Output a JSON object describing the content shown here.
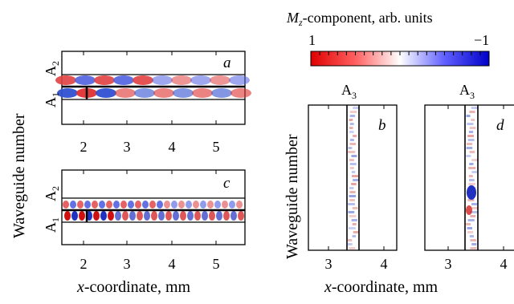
{
  "colorbar": {
    "title_main": "M",
    "title_sub": "z",
    "title_rest": "-component, arb. units",
    "max_label": "1",
    "min_label": "−1",
    "stops": [
      "#e00000",
      "#ff6060",
      "#ffffff",
      "#6060ff",
      "#0000c8"
    ]
  },
  "left_column": {
    "ylabel": "Waveguide number",
    "xlabel_italic": "x",
    "xlabel_rest": "-coordinate, mm",
    "xticks": [
      "2",
      "3",
      "4",
      "5"
    ]
  },
  "right_column": {
    "ylabel": "Waveguide number",
    "xlabel_italic": "x",
    "xlabel_rest": "-coordinate, mm",
    "xticks": [
      "3",
      "4"
    ]
  },
  "panels": {
    "a": {
      "letter": "a",
      "row_top": "A",
      "row_top_sub": "2",
      "row_bottom": "A",
      "row_bottom_sub": "1"
    },
    "c": {
      "letter": "c",
      "row_top": "A",
      "row_top_sub": "2",
      "row_bottom": "A",
      "row_bottom_sub": "1"
    },
    "b": {
      "letter": "b",
      "header": "A",
      "header_sub": "3"
    },
    "d": {
      "letter": "d",
      "header": "A",
      "header_sub": "3"
    }
  }
}
